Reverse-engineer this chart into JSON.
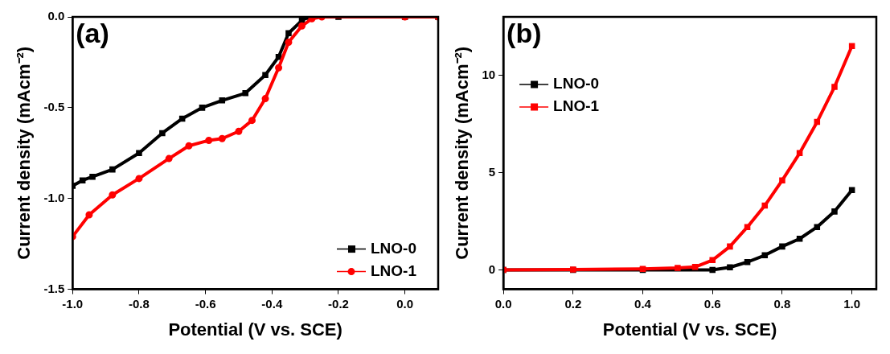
{
  "chart_data": [
    {
      "type": "line",
      "title": "(a)",
      "xlabel": "Potential (V vs. SCE)",
      "ylabel": "Current density (mAcm⁻²)",
      "xlim": [
        -1.0,
        0.1
      ],
      "ylim": [
        -1.5,
        0.0
      ],
      "xticks": [
        {
          "value": -1.0,
          "label": "-1.0"
        },
        -0.8,
        -0.6,
        -0.4,
        -0.2,
        {
          "value": 0.0,
          "label": "0.0"
        }
      ],
      "yticks": [
        {
          "value": -1.5,
          "label": "-1.5"
        },
        {
          "value": -1.0,
          "label": "-1.0"
        },
        -0.5,
        {
          "value": 0.0,
          "label": "0.0"
        }
      ],
      "grid": false,
      "legend": "bottom right",
      "series": [
        {
          "name": "LNO-0",
          "color": "#000000",
          "marker": "square",
          "x": [
            -1.0,
            -0.97,
            -0.94,
            -0.88,
            -0.8,
            -0.73,
            -0.67,
            -0.61,
            -0.55,
            -0.48,
            -0.42,
            -0.38,
            -0.35,
            -0.31,
            -0.29,
            -0.2,
            0.0,
            0.1
          ],
          "values": [
            -0.93,
            -0.9,
            -0.88,
            -0.84,
            -0.75,
            -0.64,
            -0.56,
            -0.5,
            -0.46,
            -0.42,
            -0.32,
            -0.22,
            -0.09,
            -0.02,
            0.0,
            0.0,
            0.0,
            0.0
          ]
        },
        {
          "name": "LNO-1",
          "color": "#ff0000",
          "marker": "circle",
          "x": [
            -1.0,
            -0.95,
            -0.88,
            -0.8,
            -0.71,
            -0.65,
            -0.59,
            -0.55,
            -0.5,
            -0.46,
            -0.42,
            -0.38,
            -0.35,
            -0.31,
            -0.28,
            -0.25,
            0.0,
            0.1
          ],
          "values": [
            -1.21,
            -1.09,
            -0.98,
            -0.89,
            -0.78,
            -0.71,
            -0.68,
            -0.67,
            -0.63,
            -0.57,
            -0.45,
            -0.28,
            -0.14,
            -0.05,
            -0.01,
            0.0,
            0.0,
            0.0
          ]
        }
      ]
    },
    {
      "type": "line",
      "title": "(b)",
      "xlabel": "Potential (V vs. SCE)",
      "ylabel": "Current density (mAcm⁻²)",
      "xlim": [
        0.0,
        1.07
      ],
      "ylim": [
        -1,
        13
      ],
      "xticks": [
        {
          "value": 0.0,
          "label": "0.0"
        },
        0.2,
        0.4,
        0.6,
        0.8,
        {
          "value": 1.0,
          "label": "1.0"
        }
      ],
      "yticks": [
        0,
        5,
        10
      ],
      "grid": false,
      "legend": "top left",
      "series": [
        {
          "name": "LNO-0",
          "color": "#000000",
          "marker": "square",
          "x": [
            0.0,
            0.2,
            0.4,
            0.6,
            0.65,
            0.7,
            0.75,
            0.8,
            0.85,
            0.9,
            0.95,
            1.0
          ],
          "values": [
            0.0,
            0.0,
            0.0,
            0.0,
            0.13,
            0.4,
            0.75,
            1.2,
            1.6,
            2.2,
            3.0,
            4.1
          ]
        },
        {
          "name": "LNO-1",
          "color": "#ff0000",
          "marker": "square",
          "x": [
            0.0,
            0.2,
            0.4,
            0.5,
            0.55,
            0.6,
            0.65,
            0.7,
            0.75,
            0.8,
            0.85,
            0.9,
            0.95,
            1.0
          ],
          "values": [
            0.0,
            0.02,
            0.05,
            0.1,
            0.15,
            0.5,
            1.2,
            2.2,
            3.3,
            4.6,
            6.0,
            7.6,
            9.4,
            11.5
          ]
        }
      ]
    }
  ]
}
